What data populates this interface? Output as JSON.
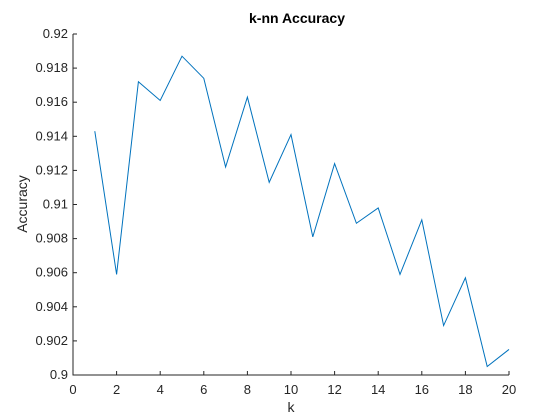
{
  "chart_data": {
    "type": "line",
    "title": "k-nn Accuracy",
    "xlabel": "k",
    "ylabel": "Accuracy",
    "xlim": [
      0,
      20
    ],
    "ylim": [
      0.9,
      0.92
    ],
    "xticks": [
      0,
      2,
      4,
      6,
      8,
      10,
      12,
      14,
      16,
      18,
      20
    ],
    "yticks": [
      0.9,
      0.902,
      0.904,
      0.906,
      0.908,
      0.91,
      0.912,
      0.914,
      0.916,
      0.918,
      0.92
    ],
    "ytick_labels": [
      "0.9",
      "0.902",
      "0.904",
      "0.906",
      "0.908",
      "0.91",
      "0.912",
      "0.914",
      "0.916",
      "0.918",
      "0.92"
    ],
    "grid": false,
    "series": [
      {
        "color": "#0072BD",
        "x": [
          1,
          2,
          3,
          4,
          5,
          6,
          7,
          8,
          9,
          10,
          11,
          12,
          13,
          14,
          15,
          16,
          17,
          18,
          19,
          20
        ],
        "values": [
          0.9143,
          0.9059,
          0.9172,
          0.9161,
          0.9187,
          0.9174,
          0.9122,
          0.9163,
          0.9113,
          0.9141,
          0.9081,
          0.9124,
          0.9089,
          0.9098,
          0.9059,
          0.9091,
          0.9029,
          0.9057,
          0.9005,
          0.9015
        ]
      }
    ]
  }
}
